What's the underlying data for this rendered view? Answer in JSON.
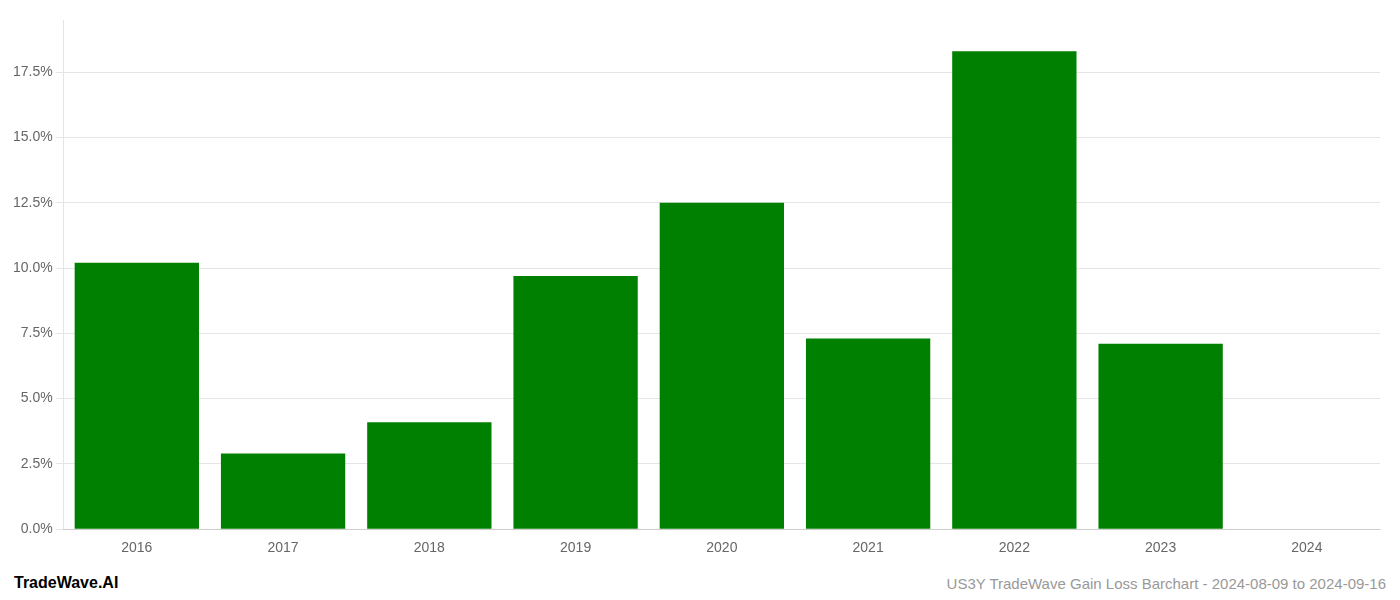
{
  "chart_data": {
    "type": "bar",
    "categories": [
      "2016",
      "2017",
      "2018",
      "2019",
      "2020",
      "2021",
      "2022",
      "2023",
      "2024"
    ],
    "values": [
      0.102,
      0.029,
      0.041,
      0.097,
      0.125,
      0.073,
      0.183,
      0.071,
      0.0
    ],
    "color": "#008000",
    "ylim": [
      0.0,
      0.195
    ],
    "yticks": [
      {
        "value": 0.0,
        "label": "0.0%"
      },
      {
        "value": 0.025,
        "label": "2.5%"
      },
      {
        "value": 0.05,
        "label": "5.0%"
      },
      {
        "value": 0.075,
        "label": "7.5%"
      },
      {
        "value": 0.1,
        "label": "10.0%"
      },
      {
        "value": 0.125,
        "label": "12.5%"
      },
      {
        "value": 0.15,
        "label": "15.0%"
      },
      {
        "value": 0.175,
        "label": "17.5%"
      }
    ],
    "grid": true,
    "annotations": [
      "TradeWave.AI",
      "US3Y TradeWave Gain Loss Barchart - 2024-08-09 to 2024-09-16"
    ]
  }
}
